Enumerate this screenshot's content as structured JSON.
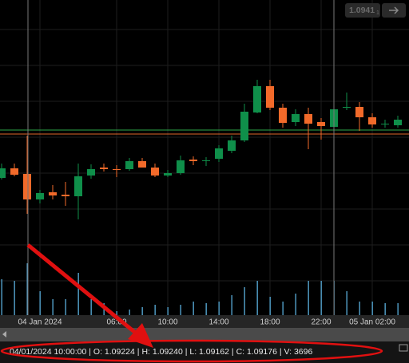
{
  "chart_data": {
    "type": "candlestick",
    "categories": [
      null,
      null,
      null,
      "04 Jan 2024",
      null,
      null,
      null,
      null,
      null,
      "06:00",
      null,
      null,
      null,
      "10:00",
      null,
      null,
      null,
      "14:00",
      null,
      null,
      null,
      "18:00",
      null,
      null,
      null,
      "22:00",
      null,
      null,
      null,
      "05 Jan 02:00",
      null,
      null
    ],
    "open": [
      1.09104,
      1.09128,
      1.09114,
      1.0905,
      1.09068,
      1.09062,
      1.09058,
      1.0911,
      1.0913,
      1.09126,
      1.09126,
      1.09146,
      1.0913,
      1.0911,
      1.09116,
      1.0915,
      1.09146,
      1.09152,
      1.09172,
      1.09198,
      1.09268,
      1.09334,
      1.0928,
      1.09244,
      1.09264,
      1.09244,
      1.09232,
      1.0928,
      1.09282,
      1.09256,
      1.09238,
      1.09236
    ],
    "high": [
      1.0914,
      1.0914,
      1.0921,
      1.09074,
      1.09086,
      1.09094,
      1.0914,
      1.09138,
      1.0914,
      1.09136,
      1.09154,
      1.09154,
      1.0914,
      1.09124,
      1.0916,
      1.09158,
      1.09156,
      1.09186,
      1.0921,
      1.0929,
      1.0935,
      1.0935,
      1.0929,
      1.09276,
      1.0928,
      1.09254,
      1.0929,
      1.09318,
      1.09294,
      1.09266,
      1.0925,
      1.0926
    ],
    "low": [
      1.091,
      1.09108,
      1.09014,
      1.0904,
      1.0905,
      1.09034,
      1.09,
      1.09102,
      1.0912,
      1.09106,
      1.09122,
      1.0913,
      1.09106,
      1.09106,
      1.09112,
      1.09136,
      1.09134,
      1.09144,
      1.09166,
      1.09194,
      1.09266,
      1.09274,
      1.0923,
      1.09234,
      1.09176,
      1.092,
      1.09206,
      1.09274,
      1.09222,
      1.0923,
      1.0923,
      1.0923
    ],
    "close": [
      1.09128,
      1.09112,
      1.0905,
      1.09066,
      1.0906,
      1.09058,
      1.09108,
      1.09126,
      1.09126,
      1.09124,
      1.09146,
      1.0913,
      1.0911,
      1.09116,
      1.09148,
      1.09146,
      1.09148,
      1.09178,
      1.09198,
      1.0927,
      1.09334,
      1.0928,
      1.09242,
      1.09264,
      1.0924,
      1.09234,
      1.09276,
      1.09282,
      1.09256,
      1.09238,
      1.0924,
      1.0925
    ],
    "volume": [
      45,
      43,
      65,
      30,
      20,
      20,
      53,
      20,
      15,
      5,
      7,
      10,
      13,
      10,
      13,
      17,
      15,
      17,
      25,
      35,
      43,
      23,
      17,
      27,
      43,
      43,
      43,
      30,
      17,
      17,
      15,
      15
    ],
    "up_color": "#0f8f4a",
    "down_color": "#f26a2a",
    "volume_color": "#5aaedc",
    "ylim": [
      1.0875,
      1.0955
    ],
    "volume_lim": [
      0,
      100
    ],
    "levels": [
      {
        "value": 1.09224,
        "color": "#2ea84a"
      },
      {
        "value": 1.09214,
        "color": "#e0672a"
      }
    ],
    "grid": true
  },
  "status": [
    "04/01/2024 10:00:00",
    "O: 1.09224",
    "H: 1.09240",
    "L: 1.09162",
    "C: 1.09176",
    "V: 3696"
  ],
  "price_box": "1.0941",
  "price_box_sub": "1"
}
